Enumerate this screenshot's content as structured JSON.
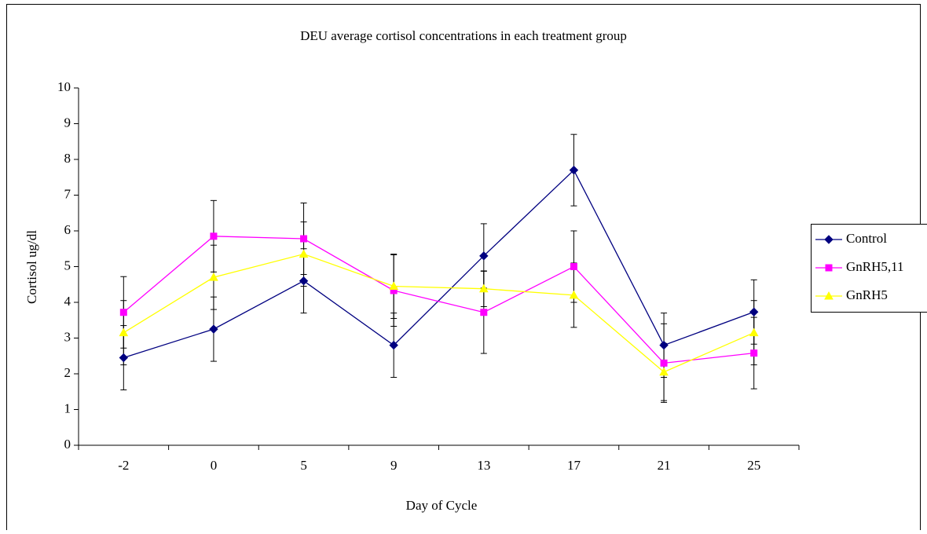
{
  "chart_data": {
    "type": "line",
    "title": "DEU average cortisol concentrations in each treatment group",
    "x_label": "Day of Cycle",
    "y_label": "Cortisol ug/dl",
    "categories": [
      "-2",
      "0",
      "5",
      "9",
      "13",
      "17",
      "21",
      "25"
    ],
    "ylim": [
      0,
      10
    ],
    "yticks": [
      0,
      1,
      2,
      3,
      4,
      5,
      6,
      7,
      8,
      9,
      10
    ],
    "legend": "right",
    "series": [
      {
        "name": "Control",
        "color": "#000080",
        "marker": "diamond",
        "values": [
          2.45,
          3.25,
          4.6,
          2.8,
          5.3,
          7.7,
          2.8,
          3.73
        ],
        "errors": [
          0.9,
          0.9,
          0.9,
          0.9,
          0.9,
          1.0,
          0.9,
          0.9
        ]
      },
      {
        "name": "GnRH5,11",
        "color": "#ff00ff",
        "marker": "square",
        "values": [
          3.72,
          5.85,
          5.78,
          4.33,
          3.72,
          5.0,
          2.3,
          2.58
        ],
        "errors": [
          1.0,
          1.0,
          1.0,
          1.0,
          1.15,
          1.0,
          1.1,
          1.0
        ]
      },
      {
        "name": "GnRH5",
        "color": "#ffff00",
        "marker": "triangle",
        "values": [
          3.15,
          4.7,
          5.35,
          4.45,
          4.38,
          4.2,
          2.05,
          3.15
        ],
        "errors": [
          0.9,
          0.9,
          0.9,
          0.9,
          0.5,
          0.9,
          0.8,
          0.9
        ]
      }
    ]
  }
}
